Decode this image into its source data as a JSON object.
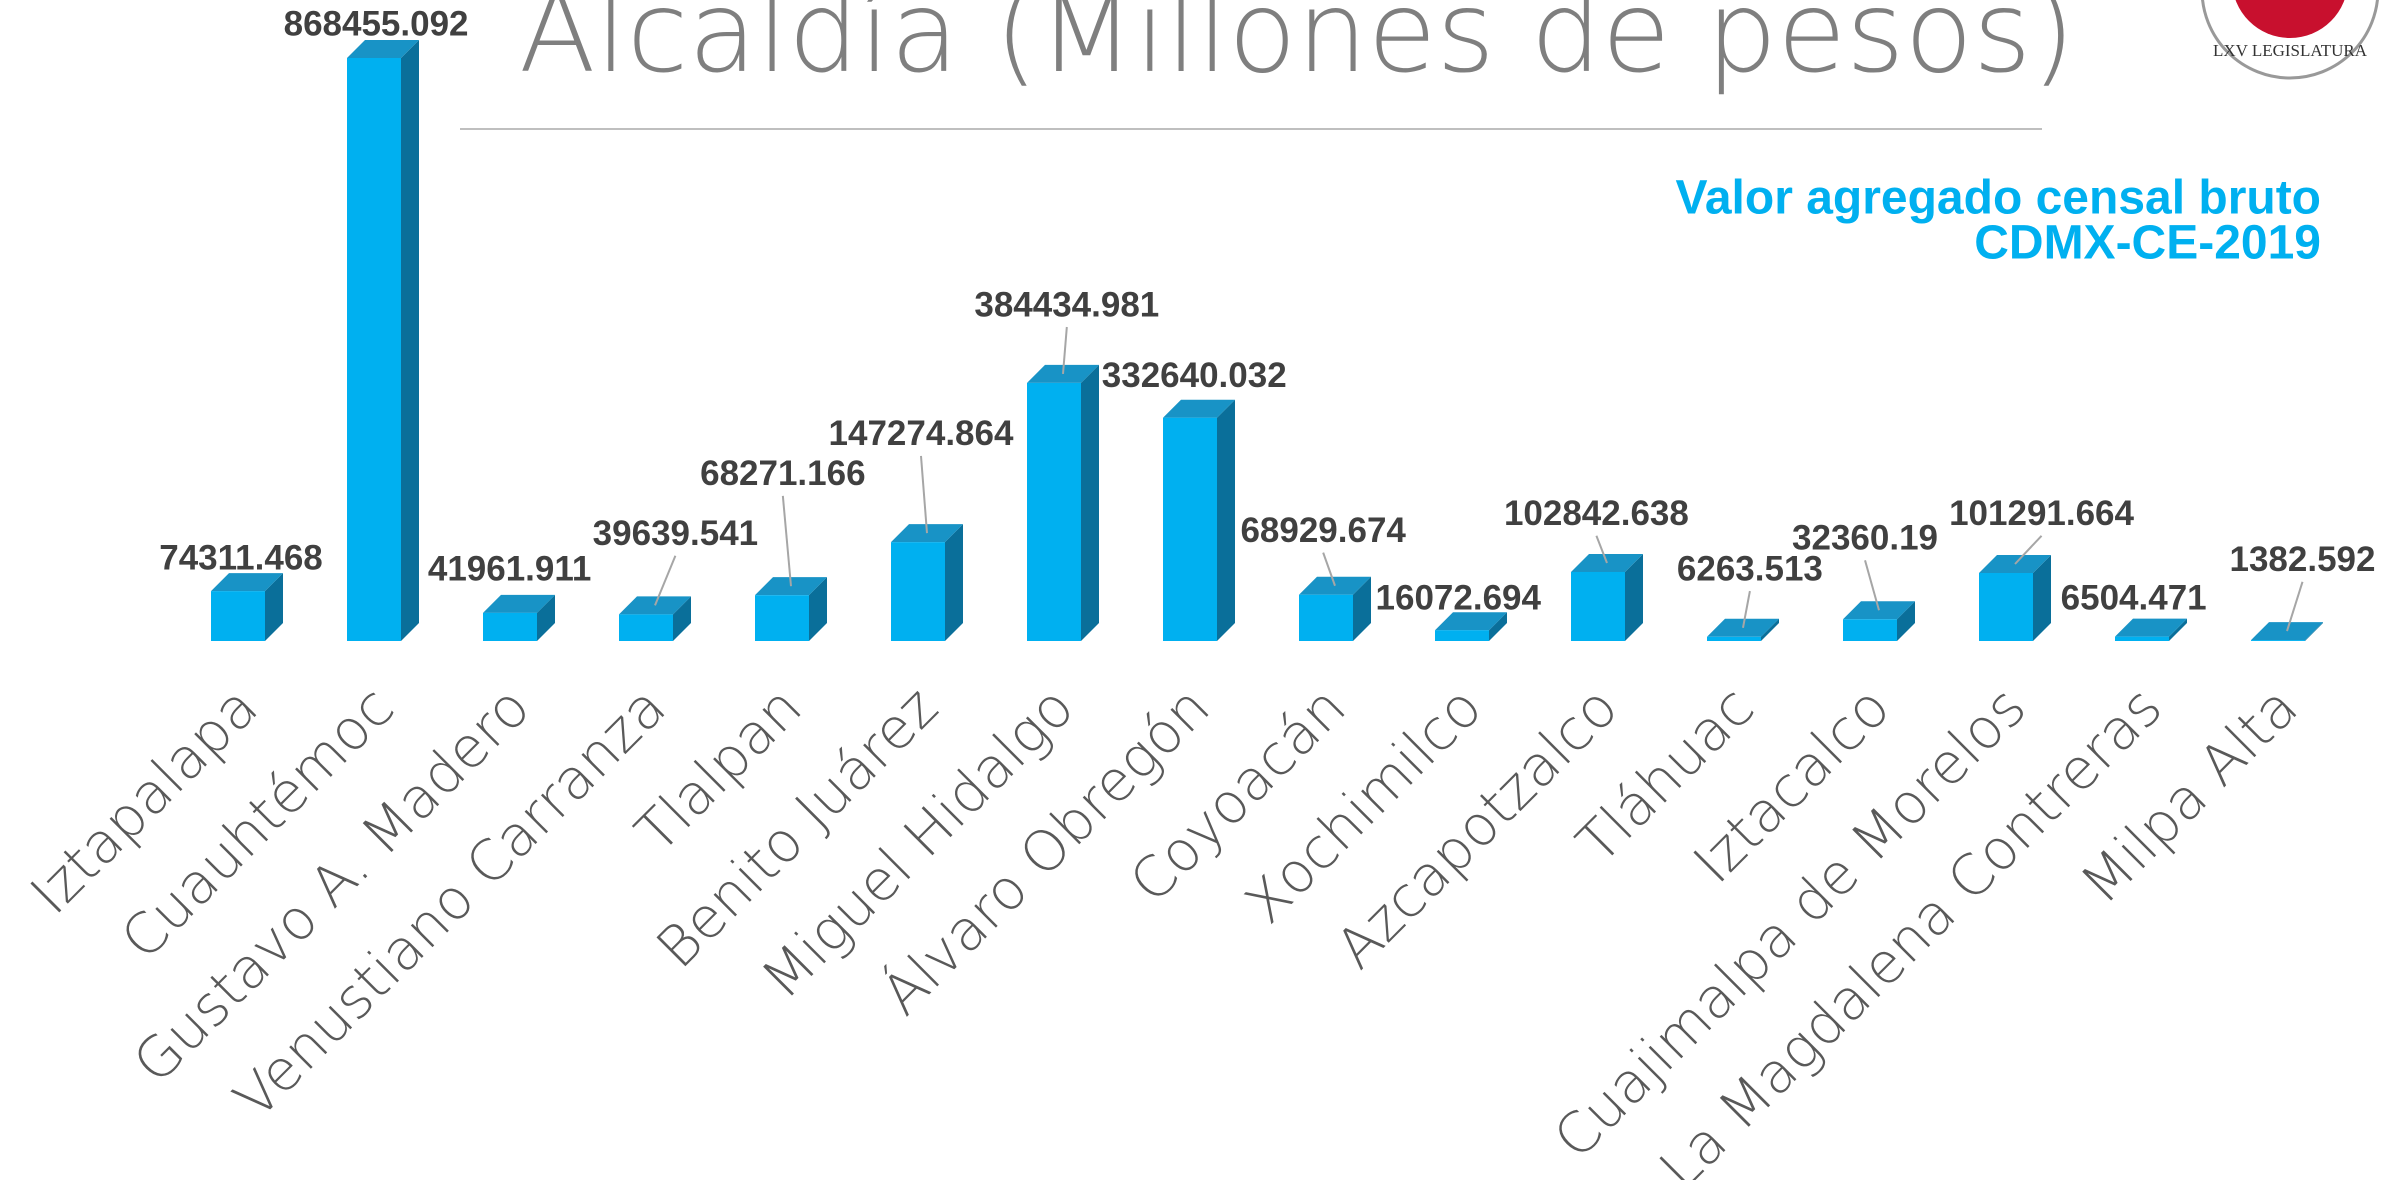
{
  "logo_text": "LXV LEGISLATURA",
  "chart_data": {
    "type": "bar3d",
    "title": "Alcaldía (Millones de pesos)",
    "subtitle": [
      "Valor agregado censal bruto",
      "CDMX-CE-2019"
    ],
    "categories": [
      "Iztapalapa",
      "Cuauhtémoc",
      "Gustavo A. Madero",
      "Venustiano Carranza",
      "Tlalpan",
      "Benito Juárez",
      "Miguel Hidalgo",
      "Álvaro Obregón",
      "Coyoacán",
      "Xochimilco",
      "Azcapotzalco",
      "Tláhuac",
      "Iztacalco",
      "Cuajimalpa de Morelos",
      "La Magdalena Contreras",
      "Milpa Alta"
    ],
    "values": [
      74311.468,
      868455.092,
      41961.911,
      39639.541,
      68271.166,
      147274.864,
      384434.981,
      332640.032,
      68929.674,
      16072.694,
      102842.638,
      6263.513,
      32360.19,
      101291.664,
      6504.471,
      1382.592
    ],
    "color": "#00b0f0"
  }
}
